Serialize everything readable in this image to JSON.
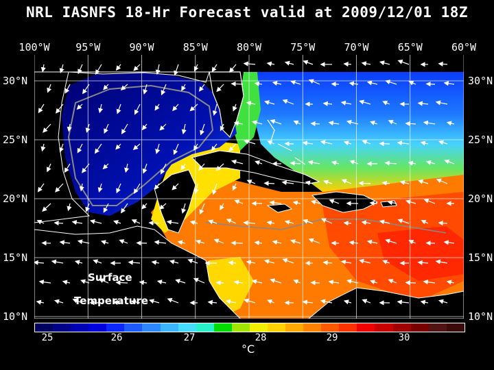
{
  "title": "NRL IASNFS  18-Hr Forecast valid at 2009/12/01 18Z",
  "lon_labels": [
    "100°W",
    "95°W",
    "90°W",
    "85°W",
    "80°W",
    "75°W",
    "70°W",
    "65°W",
    "60°W"
  ],
  "lat_labels": [
    "30°N",
    "25°N",
    "20°N",
    "15°N",
    "10°N"
  ],
  "overlay": {
    "line1": "Surface",
    "line2": "Temperature"
  },
  "colorbar": {
    "ticks": [
      "25",
      "26",
      "27",
      "28",
      "29",
      "30"
    ],
    "unit": "°C",
    "colors": [
      "#000060",
      "#00008a",
      "#0000b4",
      "#0000dc",
      "#0a28ff",
      "#1e5aff",
      "#2d87ff",
      "#3cb4ff",
      "#46dcff",
      "#28f0c8",
      "#00dc00",
      "#a0e600",
      "#f0f000",
      "#ffd200",
      "#ffaa00",
      "#ff8200",
      "#ff5a00",
      "#ff3200",
      "#f00000",
      "#c80000",
      "#a00000",
      "#780000",
      "#501414",
      "#3c0a0a"
    ]
  },
  "map_colors": {
    "gulf": "#000a9a",
    "atlantic_north": "#1464ff",
    "atlantic_mid": "#3cc8ff",
    "caribbean": "#ff7800",
    "caribbean_warm": "#ff4000",
    "yucatan": "#ffe600",
    "land": "#000000",
    "coast": "#ffffff",
    "bathymetry": "#888888"
  }
}
